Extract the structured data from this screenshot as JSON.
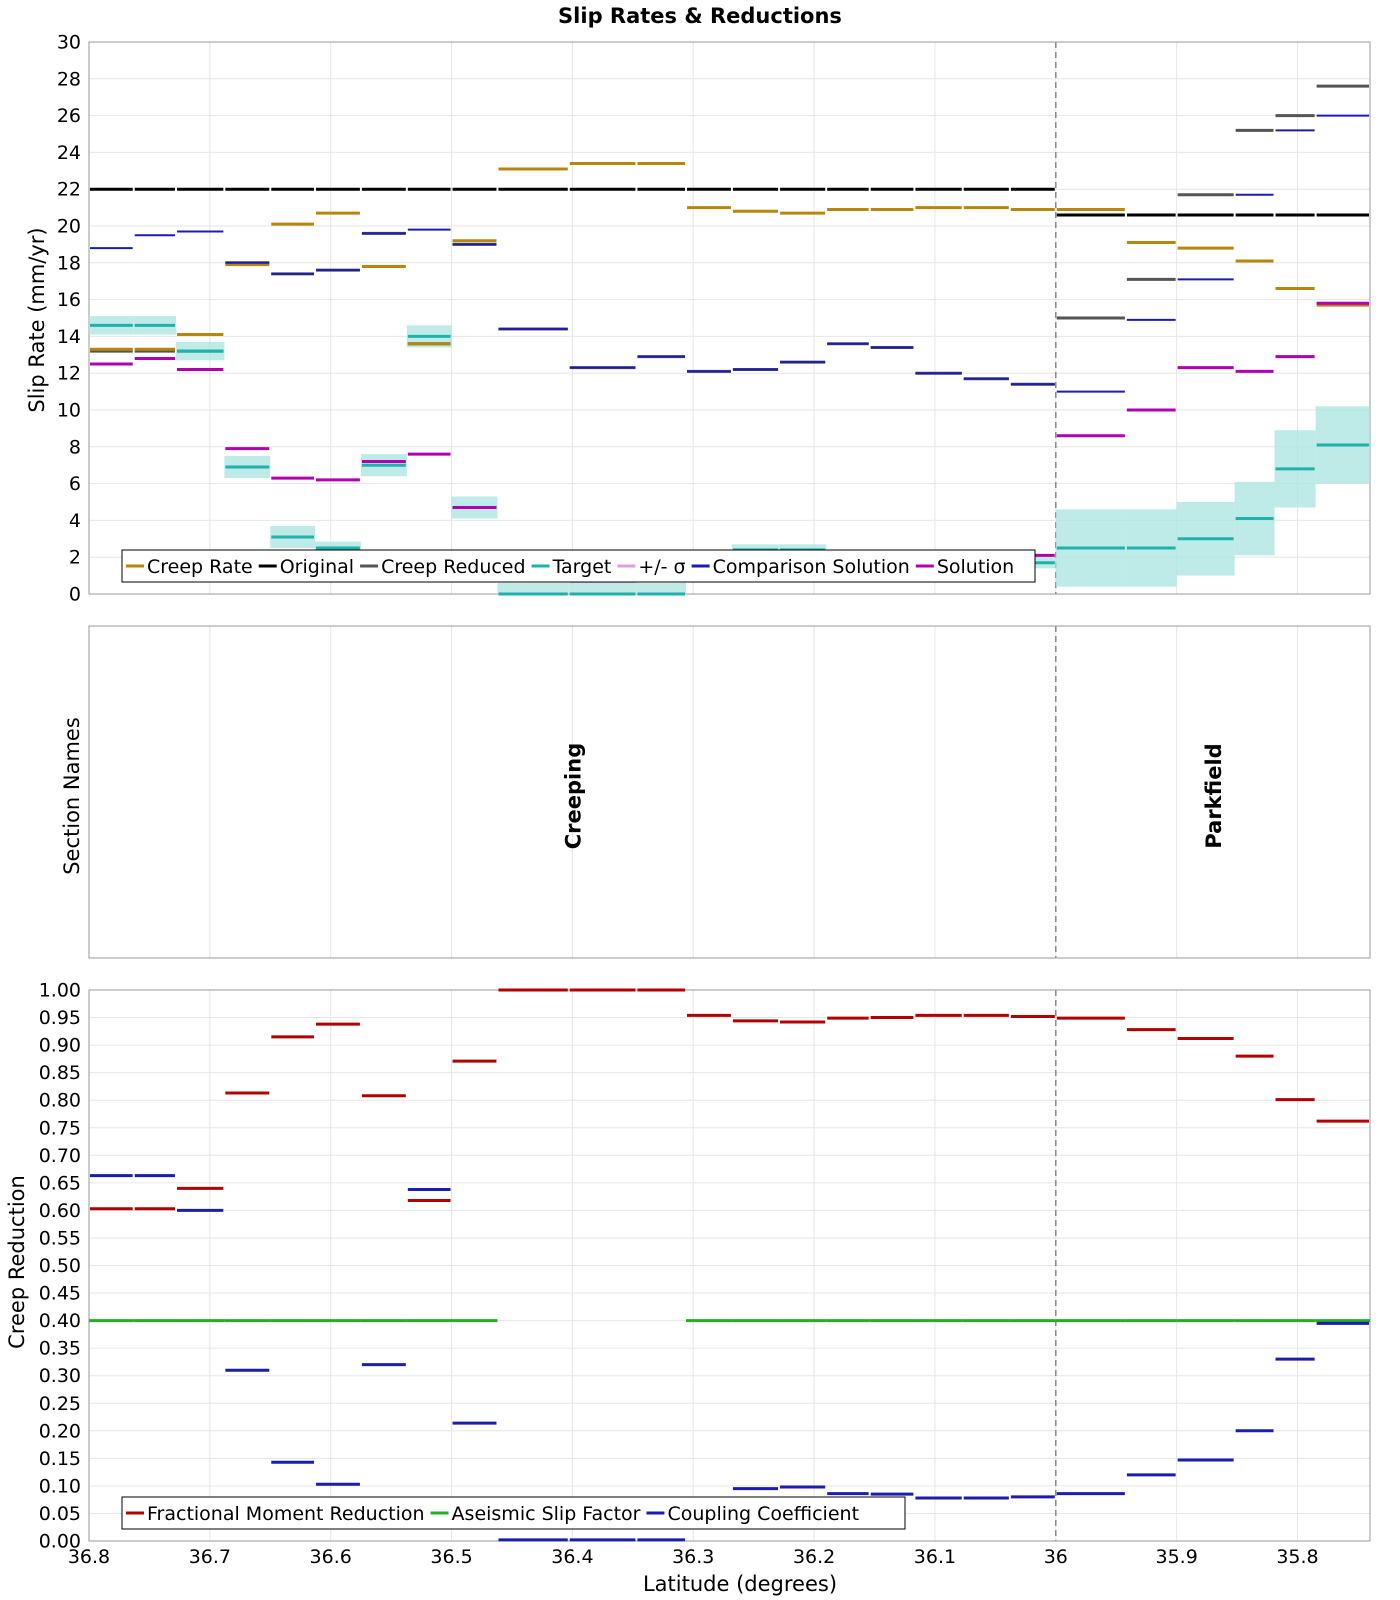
{
  "figure": {
    "title": "Slip Rates & Reductions",
    "xlabel": "Latitude (degrees)",
    "panel1_ylabel": "Slip Rate (mm/yr)",
    "panel2_ylabel": "Section Names",
    "panel3_ylabel": "Creep Reduction"
  },
  "chart_data": [
    {
      "type": "line",
      "title": "Slip Rates & Reductions",
      "xlabel": "Latitude (degrees)",
      "ylabel": "Slip Rate (mm/yr)",
      "xlim": [
        36.8,
        35.74
      ],
      "ylim": [
        0,
        30
      ],
      "x_reversed": true,
      "grid": true,
      "legend_position": "bottom-left",
      "yticks": [
        "0",
        "2",
        "4",
        "6",
        "8",
        "10",
        "12",
        "14",
        "16",
        "18",
        "20",
        "22",
        "24",
        "26",
        "28",
        "30"
      ],
      "section_boundaries": [
        36.8,
        36.763,
        36.728,
        36.688,
        36.65,
        36.613,
        36.575,
        36.537,
        36.5,
        36.462,
        36.403,
        36.347,
        36.306,
        36.268,
        36.229,
        36.19,
        36.154,
        36.117,
        36.077,
        36.038,
        36.0,
        35.942,
        35.9,
        35.852,
        35.819,
        35.785,
        35.74
      ],
      "series": [
        {
          "name": "Creep Rate",
          "color": "#b8860b",
          "values": [
            13.3,
            13.3,
            14.1,
            17.9,
            20.1,
            20.7,
            17.8,
            13.6,
            19.2,
            23.1,
            23.4,
            23.4,
            21.0,
            20.8,
            20.7,
            20.9,
            20.9,
            21.0,
            21.0,
            20.9,
            20.9,
            19.1,
            18.8,
            18.1,
            16.6,
            15.7
          ]
        },
        {
          "name": "Original",
          "color": "#000000",
          "values": [
            22.0,
            22.0,
            22.0,
            22.0,
            22.0,
            22.0,
            22.0,
            22.0,
            22.0,
            22.0,
            22.0,
            22.0,
            22.0,
            22.0,
            22.0,
            22.0,
            22.0,
            22.0,
            22.0,
            22.0,
            20.6,
            20.6,
            20.6,
            20.6,
            20.6,
            20.6
          ]
        },
        {
          "name": "Creep Reduced",
          "color": "#555555",
          "values": [
            13.2,
            13.2,
            13.2,
            18.0,
            17.4,
            17.6,
            19.6,
            13.6,
            19.0,
            14.4,
            12.3,
            12.9,
            12.1,
            12.2,
            12.6,
            13.6,
            13.4,
            12.0,
            11.7,
            11.4,
            15.0,
            17.1,
            21.7,
            25.2,
            26.0,
            27.6
          ]
        },
        {
          "name": "Target",
          "color": "#20b2aa",
          "values": [
            14.6,
            14.6,
            13.2,
            6.9,
            3.1,
            2.5,
            7.0,
            14.0,
            4.7,
            0.0,
            0.0,
            0.0,
            2.2,
            2.4,
            2.4,
            2.0,
            2.0,
            1.8,
            1.8,
            1.7,
            2.5,
            2.5,
            3.0,
            4.1,
            6.8,
            8.1
          ]
        },
        {
          "name": "+/- σ",
          "color": "#dda0dd",
          "values": [
            0.5,
            0.5,
            0.5,
            0.6,
            0.6,
            0.35,
            0.6,
            0.6,
            0.6,
            0.6,
            0.6,
            0.6,
            0.2,
            0.3,
            0.3,
            0.2,
            0.2,
            0.2,
            0.2,
            0.3,
            2.1,
            2.1,
            2.0,
            2.0,
            2.1,
            2.1
          ]
        },
        {
          "name": "Comparison Solution",
          "color": "#1c1cb0",
          "values": [
            18.8,
            19.5,
            19.7,
            18.0,
            17.4,
            17.6,
            19.6,
            19.8,
            19.0,
            14.4,
            12.3,
            12.9,
            12.1,
            12.2,
            12.6,
            13.6,
            13.4,
            12.0,
            11.7,
            11.4,
            11.0,
            14.9,
            17.1,
            21.7,
            25.2,
            26.0
          ]
        },
        {
          "name": "Solution",
          "color": "#b000b0",
          "values": [
            12.5,
            12.8,
            12.2,
            7.9,
            6.3,
            6.2,
            7.2,
            7.6,
            4.7,
            0.8,
            0.7,
            2.1,
            2.2,
            2.2,
            2.3,
            2.2,
            2.3,
            2.2,
            2.2,
            2.1,
            8.6,
            10.0,
            12.3,
            12.1,
            12.9,
            15.8
          ]
        }
      ]
    },
    {
      "type": "table",
      "ylabel": "Section Names",
      "sections": [
        {
          "name": "Creeping",
          "from": 36.8,
          "to": 36.0
        },
        {
          "name": "Parkfield",
          "from": 36.0,
          "to": 35.74
        }
      ]
    },
    {
      "type": "line",
      "xlabel": "Latitude (degrees)",
      "ylabel": "Creep Reduction",
      "xlim": [
        36.8,
        35.74
      ],
      "ylim": [
        0,
        1.0
      ],
      "x_reversed": true,
      "grid": true,
      "legend_position": "bottom-left",
      "xticks": [
        "36.8",
        "36.7",
        "36.6",
        "36.5",
        "36.4",
        "36.3",
        "36.2",
        "36.1",
        "36",
        "35.9",
        "35.8"
      ],
      "yticks": [
        "0.00",
        "0.05",
        "0.10",
        "0.15",
        "0.20",
        "0.25",
        "0.30",
        "0.35",
        "0.40",
        "0.45",
        "0.50",
        "0.55",
        "0.60",
        "0.65",
        "0.70",
        "0.75",
        "0.80",
        "0.85",
        "0.90",
        "0.95",
        "1.00"
      ],
      "series": [
        {
          "name": "Fractional Moment Reduction",
          "color": "#b30000",
          "values": [
            0.603,
            0.603,
            0.64,
            0.813,
            0.915,
            0.938,
            0.808,
            0.618,
            0.871,
            1.0,
            1.0,
            1.0,
            0.954,
            0.944,
            0.942,
            0.949,
            0.95,
            0.954,
            0.954,
            0.952,
            0.949,
            0.928,
            0.912,
            0.88,
            0.801,
            0.762
          ]
        },
        {
          "name": "Aseismic Slip Factor",
          "color": "#22b022",
          "values": [
            0.4,
            0.4,
            0.4,
            0.4,
            0.4,
            0.4,
            0.4,
            0.4,
            0.4,
            null,
            null,
            null,
            0.4,
            0.4,
            0.4,
            0.4,
            0.4,
            0.4,
            0.4,
            0.4,
            0.4,
            0.4,
            0.4,
            0.4,
            0.4,
            0.4
          ]
        },
        {
          "name": "Coupling Coefficient",
          "color": "#1c1cb0",
          "values": [
            0.663,
            0.663,
            0.6,
            0.31,
            0.143,
            0.103,
            0.32,
            0.638,
            0.214,
            0.002,
            0.002,
            0.002,
            0.077,
            0.095,
            0.098,
            0.086,
            0.085,
            0.078,
            0.078,
            0.08,
            0.086,
            0.12,
            0.147,
            0.2,
            0.33,
            0.395
          ]
        }
      ]
    }
  ]
}
